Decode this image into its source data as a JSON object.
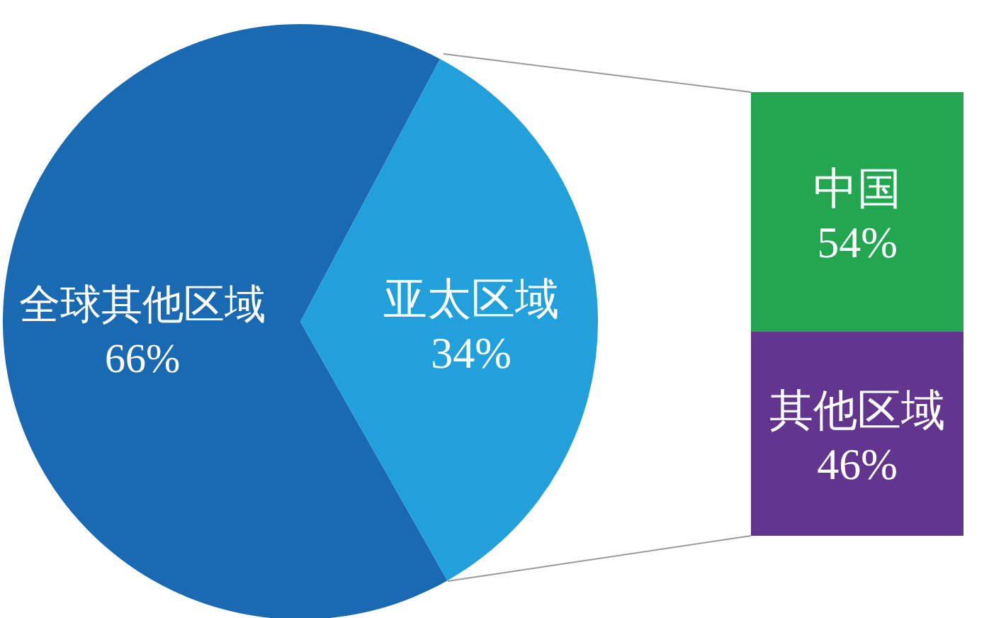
{
  "chart_data": [
    {
      "type": "pie",
      "categories": [
        "全球其他区域",
        "亚太区域"
      ],
      "values": [
        66,
        34
      ],
      "colors": [
        "#1a6ab3",
        "#21a0db"
      ],
      "value_labels": [
        "66%",
        "34%"
      ]
    },
    {
      "type": "bar",
      "stacked": true,
      "categories": [
        null
      ],
      "series": [
        {
          "name": "其他区域",
          "color": "#62358f",
          "values": [
            46
          ],
          "value_labels": [
            "46%"
          ]
        },
        {
          "name": "中国",
          "color": "#22a650",
          "values": [
            54
          ],
          "value_labels": [
            "54%"
          ]
        }
      ]
    }
  ]
}
